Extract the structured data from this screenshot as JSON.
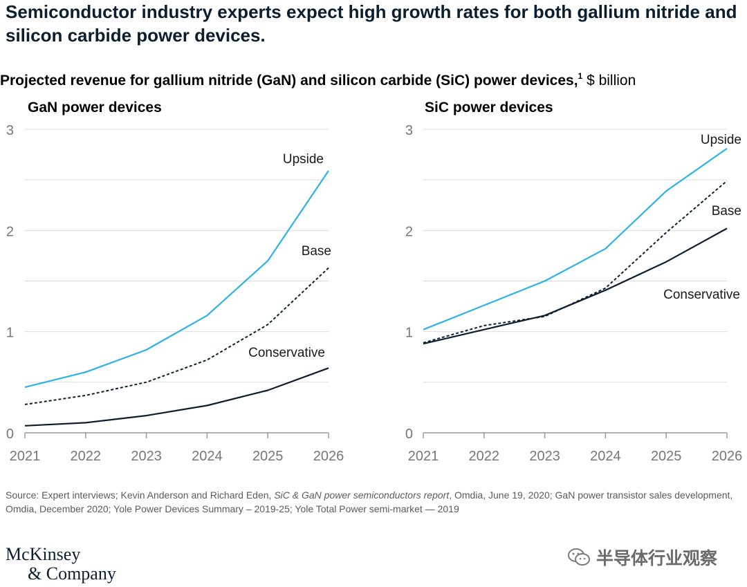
{
  "headline": "Semiconductor industry experts expect high growth rates for both gallium nitride and silicon carbide power devices.",
  "subtitle": {
    "main": "Projected revenue for gallium nitride (GaN) and silicon carbide (SiC) power devices,",
    "footnote_mark": "1",
    "unit": " $ billion"
  },
  "chart_data": [
    {
      "type": "line",
      "title": "GaN power devices",
      "x": [
        "2021",
        "2022",
        "2023",
        "2024",
        "2025",
        "2026"
      ],
      "ylim": [
        0,
        3
      ],
      "yticks": [
        "0",
        "1",
        "2",
        "3"
      ],
      "grid": true,
      "series": [
        {
          "name": "Upside",
          "values": [
            0.45,
            0.6,
            0.82,
            1.16,
            1.7,
            2.59
          ],
          "color": "#2bb2e8",
          "dash": false
        },
        {
          "name": "Base",
          "values": [
            0.28,
            0.37,
            0.5,
            0.72,
            1.07,
            1.63
          ],
          "color": "#0a1e30",
          "dash": true
        },
        {
          "name": "Conservative",
          "values": [
            0.07,
            0.1,
            0.17,
            0.27,
            0.42,
            0.64
          ],
          "color": "#0a1e30",
          "dash": false
        }
      ]
    },
    {
      "type": "line",
      "title": "SiC power devices",
      "x": [
        "2021",
        "2022",
        "2023",
        "2024",
        "2025",
        "2026"
      ],
      "ylim": [
        0,
        3
      ],
      "yticks": [
        "0",
        "1",
        "2",
        "3"
      ],
      "grid": true,
      "series": [
        {
          "name": "Upside",
          "values": [
            1.02,
            1.26,
            1.5,
            1.82,
            2.39,
            2.81
          ],
          "color": "#2bb2e8",
          "dash": false
        },
        {
          "name": "Base",
          "values": [
            0.89,
            1.06,
            1.15,
            1.43,
            1.98,
            2.49
          ],
          "color": "#0a1e30",
          "dash": true
        },
        {
          "name": "Conservative",
          "values": [
            0.88,
            1.02,
            1.16,
            1.41,
            1.69,
            2.02
          ],
          "color": "#0a1e30",
          "dash": false
        }
      ]
    }
  ],
  "source": {
    "prefix": "Source: Expert interviews; Kevin Anderson and Richard Eden, ",
    "italic": "SiC & GaN power semiconductors report",
    "suffix": ", Omdia, June 19, 2020; GaN power transistor sales development, Omdia, December 2020; Yole Power Devices Summary – 2019-25; Yole Total Power semi-market — 2019"
  },
  "logo": {
    "line1": "McKinsey",
    "line2": "& Company"
  },
  "watermark": {
    "text": "半导体行业观察",
    "icon": "wechat-icon"
  }
}
